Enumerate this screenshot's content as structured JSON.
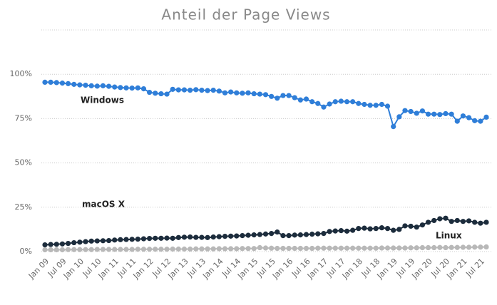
{
  "chart_data": {
    "type": "line",
    "title": "Anteil der Page Views",
    "categories": [
      "Jan 09",
      null,
      null,
      "Jul 09",
      null,
      null,
      "Jan 10",
      null,
      null,
      "Jul 10",
      null,
      null,
      "Jan 11",
      null,
      null,
      "Jul 11",
      null,
      null,
      "Jan 12",
      null,
      null,
      "Jul 12",
      null,
      null,
      "Jan 13",
      null,
      null,
      "Jul 13",
      null,
      null,
      "Jan 14",
      null,
      null,
      "Jul 14",
      null,
      null,
      "Jan 15",
      null,
      null,
      "Jul 15",
      null,
      null,
      "Jan 16",
      null,
      null,
      "Jul 16",
      null,
      null,
      "Jan 17",
      null,
      null,
      "Jul 17",
      null,
      null,
      "Jan 18",
      null,
      null,
      "Jul 18",
      null,
      null,
      "Jan 19",
      null,
      null,
      "Jul 19",
      null,
      null,
      "Jan 20",
      null,
      null,
      "Jul 20",
      null,
      null,
      "Jan 21",
      null,
      null,
      "Jul 21",
      null
    ],
    "series": [
      {
        "name": "Linux",
        "color": "#b8b8b8",
        "values": [
          1,
          1,
          1,
          1,
          1.1,
          1.1,
          1.1,
          1.1,
          1.1,
          1.2,
          1.2,
          1.2,
          1.2,
          1.2,
          1.2,
          1.2,
          1.3,
          1.3,
          1.3,
          1.3,
          1.3,
          1.3,
          1.4,
          1.4,
          1.4,
          1.4,
          1.5,
          1.5,
          1.5,
          1.5,
          1.6,
          1.6,
          1.6,
          1.6,
          1.7,
          1.7,
          1.7,
          2.2,
          2,
          1.9,
          1.8,
          1.8,
          1.8,
          1.8,
          1.8,
          1.8,
          1.8,
          1.9,
          1.9,
          1.9,
          1.9,
          1.9,
          1.9,
          1.9,
          1.9,
          1.9,
          1.9,
          1.9,
          2,
          2,
          2,
          2,
          2,
          2.1,
          2.1,
          2.2,
          2.2,
          2.2,
          2.3,
          2.2,
          2.3,
          2.3,
          2.4,
          2.4,
          2.5,
          2.5,
          2.6
        ]
      },
      {
        "name": "macOS X",
        "color": "#1c2c3c",
        "values": [
          3.8,
          4,
          4.1,
          4.3,
          4.6,
          5,
          5.3,
          5.6,
          5.9,
          6,
          6.1,
          6.2,
          6.5,
          6.7,
          6.8,
          6.9,
          7,
          7.2,
          7.4,
          7.5,
          7.5,
          7.6,
          7.5,
          7.9,
          8.1,
          8.2,
          8,
          8,
          7.9,
          8.2,
          8.4,
          8.6,
          8.7,
          8.8,
          9,
          9.2,
          9.4,
          9.6,
          9.9,
          10.2,
          11,
          9,
          9,
          9.3,
          9.4,
          9.6,
          9.8,
          10,
          10.2,
          11.3,
          11.6,
          11.8,
          11.5,
          12,
          13,
          13.2,
          12.8,
          13,
          13.4,
          13,
          12,
          12.5,
          14.5,
          14.3,
          13.8,
          15,
          16.5,
          17.5,
          18.5,
          18.8,
          17,
          17.5,
          17,
          17.3,
          16.5,
          16,
          16.5
        ]
      },
      {
        "name": "Windows",
        "color": "#2f7ed8",
        "values": [
          95.5,
          95.5,
          95.3,
          95,
          94.7,
          94.3,
          94,
          93.8,
          93.5,
          93.3,
          93.5,
          93.2,
          92.8,
          92.5,
          92.3,
          92.2,
          92.3,
          91.8,
          89.8,
          89.3,
          89,
          88.8,
          91.5,
          91.2,
          91.2,
          91,
          91.3,
          91,
          90.8,
          91,
          90.5,
          89.5,
          90,
          89.5,
          89.3,
          89.5,
          89,
          88.8,
          88.5,
          87.5,
          86.5,
          88,
          88,
          86.8,
          85.5,
          86,
          84.5,
          83.5,
          81.5,
          83.2,
          84.5,
          84.8,
          84.5,
          84.5,
          83.5,
          83,
          82.5,
          82.5,
          83,
          82,
          70.5,
          76,
          79.5,
          79,
          78,
          79.3,
          77.5,
          77.5,
          77.3,
          77.8,
          77.5,
          73.5,
          76.5,
          75.5,
          73.8,
          73.5,
          75.8
        ]
      }
    ],
    "annotations": [
      {
        "text": "Windows"
      },
      {
        "text": "macOS X"
      },
      {
        "text": "Linux"
      }
    ],
    "ylim": [
      0,
      125
    ],
    "yticks": [
      {
        "value": 0,
        "label": "0%"
      },
      {
        "value": 25,
        "label": "25%"
      },
      {
        "value": 50,
        "label": "50%"
      },
      {
        "value": 75,
        "label": "75%"
      },
      {
        "value": 100,
        "label": "100%"
      }
    ],
    "grid": true
  }
}
